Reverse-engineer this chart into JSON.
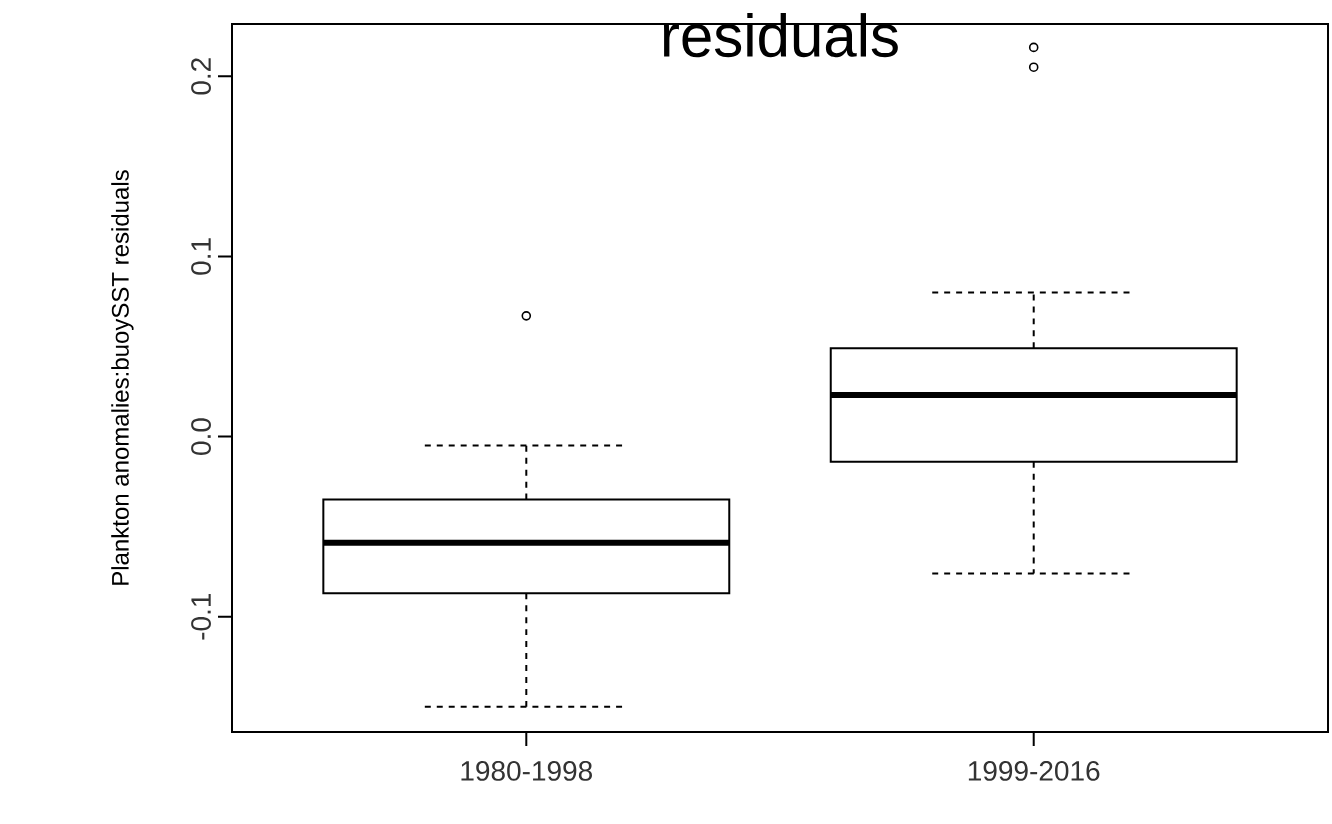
{
  "chart_data": {
    "type": "box",
    "title": "residuals",
    "ylabel": "Plankton anomalies:buoySST residuals",
    "categories": [
      "1980-1998",
      "1999-2016"
    ],
    "boxes": [
      {
        "low": -0.15,
        "q1": -0.087,
        "median": -0.059,
        "q3": -0.035,
        "high": -0.005,
        "outliers": [
          0.067
        ]
      },
      {
        "low": -0.076,
        "q1": -0.014,
        "median": 0.023,
        "q3": 0.049,
        "high": 0.08,
        "outliers": [
          0.216,
          0.205
        ]
      }
    ],
    "ylim": [
      -0.164,
      0.229
    ],
    "yticks": [
      -0.1,
      {
        "value": 0,
        "label": "0.0"
      },
      0.1,
      0.2
    ]
  }
}
